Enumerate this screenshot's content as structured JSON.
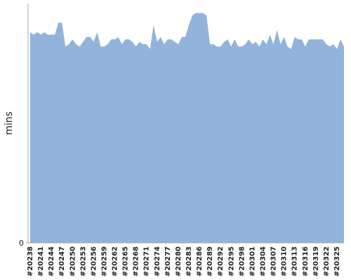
{
  "chart_data": {
    "type": "area",
    "y_label": "mins",
    "color": "#92b3db",
    "categories": [
      "#20238",
      null,
      null,
      "#20241",
      null,
      null,
      "#20244",
      null,
      null,
      "#20247",
      null,
      null,
      "#20250",
      null,
      null,
      "#20253",
      null,
      null,
      "#20256",
      null,
      null,
      "#20259",
      null,
      null,
      "#20262",
      null,
      null,
      "#20265",
      null,
      null,
      "#20268",
      null,
      null,
      "#20271",
      null,
      null,
      "#20274",
      null,
      null,
      "#20277",
      null,
      null,
      "#20280",
      null,
      null,
      "#20283",
      null,
      null,
      "#20286",
      null,
      null,
      "#20289",
      null,
      null,
      "#20292",
      null,
      null,
      "#20295",
      null,
      null,
      "#20298",
      null,
      null,
      "#20301",
      null,
      null,
      "#20304",
      null,
      null,
      "#20307",
      null,
      null,
      "#20310",
      null,
      null,
      "#20313",
      null,
      null,
      "#20316",
      null,
      null,
      "#20319",
      null,
      null,
      "#20322",
      null,
      null,
      "#20325",
      null,
      null
    ],
    "values": [
      88,
      87,
      88,
      87,
      88,
      87,
      87,
      87,
      92,
      92,
      82,
      83,
      85,
      83,
      82,
      84,
      86,
      86,
      84,
      88,
      82,
      82,
      83,
      85,
      85,
      86,
      83,
      85,
      85,
      84,
      82,
      84,
      83,
      83,
      81,
      91,
      84,
      86,
      83,
      85,
      85,
      84,
      83,
      86,
      86,
      91,
      95,
      96,
      96,
      96,
      95,
      83,
      83,
      82,
      82,
      84,
      85,
      82,
      85,
      82,
      82,
      83,
      85,
      83,
      84,
      82,
      85,
      83,
      87,
      83,
      89,
      83,
      86,
      82,
      81,
      86,
      85,
      85,
      82,
      85,
      85,
      85,
      85,
      85,
      83,
      82,
      83,
      81,
      85,
      82
    ],
    "ylim": [
      0,
      100
    ],
    "yticks": [
      0
    ]
  }
}
